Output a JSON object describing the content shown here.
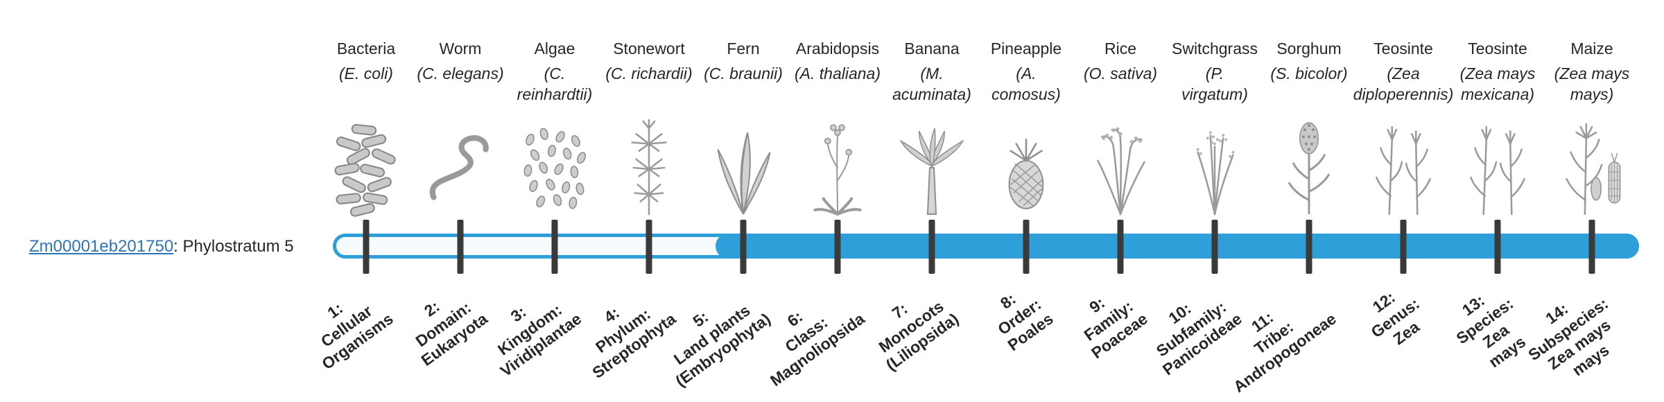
{
  "gene": {
    "id": "Zm00001eb201750",
    "suffix": ": Phylostratum 5",
    "phylostratum": 5
  },
  "colors": {
    "bar": "#2e9fd9",
    "track": "#f6fafd",
    "tick": "#3a3a3a",
    "link": "#2e75b6",
    "text": "#262626"
  },
  "timeline": {
    "fill_start_stratum": 5,
    "strata": [
      {
        "stratum": 1,
        "organism": "Bacteria",
        "scientific": "(E. coli)",
        "label": "1:\nCellular\nOrganisms",
        "icon": "bacteria"
      },
      {
        "stratum": 2,
        "organism": "Worm",
        "scientific": "(C. elegans)",
        "label": "2:\nDomain:\nEukaryota",
        "icon": "worm"
      },
      {
        "stratum": 3,
        "organism": "Algae",
        "scientific": "(C.\nreinhardtii)",
        "label": "3:\nKingdom:\nViridiplantae",
        "icon": "algae"
      },
      {
        "stratum": 4,
        "organism": "Stonewort",
        "scientific": "(C. richardii)",
        "label": "4:\nPhylum:\nStreptophyta",
        "icon": "stonewort"
      },
      {
        "stratum": 5,
        "organism": "Fern",
        "scientific": "(C. braunii)",
        "label": "5:\nLand plants\n(Embryophyta)",
        "icon": "fern"
      },
      {
        "stratum": 6,
        "organism": "Arabidopsis",
        "scientific": "(A. thaliana)",
        "label": "6:\nClass:\nMagnoliopsida",
        "icon": "arabidopsis"
      },
      {
        "stratum": 7,
        "organism": "Banana",
        "scientific": "(M.\nacuminata)",
        "label": "7:\nMonocots\n(Liliopsida)",
        "icon": "banana"
      },
      {
        "stratum": 8,
        "organism": "Pineapple",
        "scientific": "(A.\ncomosus)",
        "label": "8:\nOrder:\nPoales",
        "icon": "pineapple"
      },
      {
        "stratum": 9,
        "organism": "Rice",
        "scientific": "(O. sativa)",
        "label": "9:\nFamily:\nPoaceae",
        "icon": "rice"
      },
      {
        "stratum": 10,
        "organism": "Switchgrass",
        "scientific": "(P.\nvirgatum)",
        "label": "10:\nSubfamily:\nPanicoideae",
        "icon": "switchgrass"
      },
      {
        "stratum": 11,
        "organism": "Sorghum",
        "scientific": "(S. bicolor)",
        "label": "11:\nTribe:\nAndropogoneae",
        "icon": "sorghum"
      },
      {
        "stratum": 12,
        "organism": "Teosinte",
        "scientific": "(Zea\ndiploperennis)",
        "label": "12:\nGenus:\nZea",
        "icon": "teosinte"
      },
      {
        "stratum": 13,
        "organism": "Teosinte",
        "scientific": "(Zea mays\nmexicana)",
        "label": "13:\nSpecies:\nZea\nmays",
        "icon": "teosinte"
      },
      {
        "stratum": 14,
        "organism": "Maize",
        "scientific": "(Zea mays\nmays)",
        "label": "14:\nSubspecies:\nZea mays\nmays",
        "icon": "maize"
      }
    ]
  }
}
